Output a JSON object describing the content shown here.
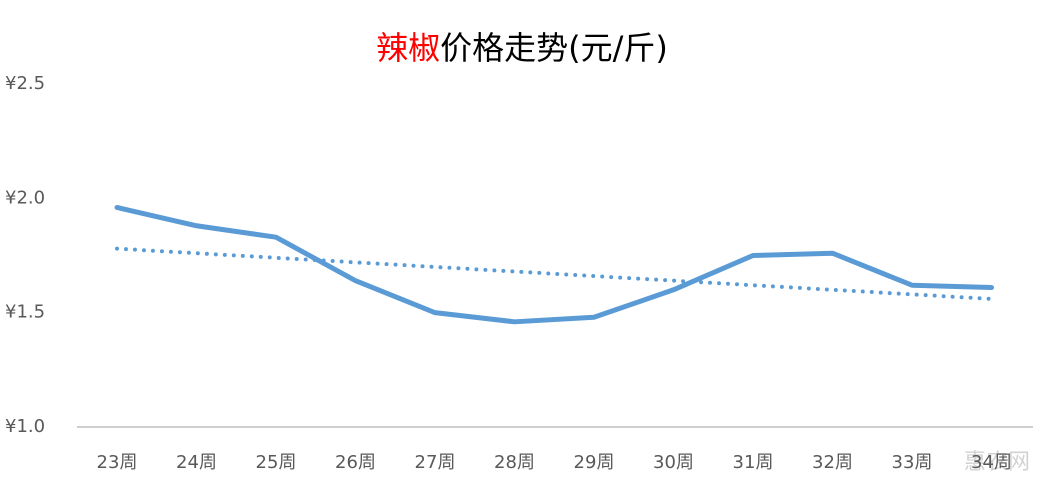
{
  "chart_data": {
    "type": "line",
    "title_highlight": "辣椒",
    "title": "价格走势(元/斤)",
    "categories": [
      "23周",
      "24周",
      "25周",
      "26周",
      "27周",
      "28周",
      "29周",
      "30周",
      "31周",
      "32周",
      "33周",
      "34周"
    ],
    "series": [
      {
        "color": "#5b9bd5",
        "style": "solid",
        "values": [
          1.96,
          1.88,
          1.83,
          1.64,
          1.5,
          1.46,
          1.48,
          1.6,
          1.75,
          1.76,
          1.62,
          1.61
        ]
      },
      {
        "color": "#5b9bd5",
        "style": "dotted",
        "values": [
          1.78,
          1.76,
          1.74,
          1.72,
          1.7,
          1.68,
          1.66,
          1.64,
          1.62,
          1.6,
          1.58,
          1.56
        ]
      }
    ],
    "ylim": [
      1.0,
      2.5
    ],
    "yticks": [
      {
        "value": 1.0,
        "label": "¥1.0"
      },
      {
        "value": 1.5,
        "label": "¥1.5"
      },
      {
        "value": 2.0,
        "label": "¥2.0"
      },
      {
        "value": 2.5,
        "label": "¥2.5"
      }
    ],
    "grid": false,
    "annotation": "惠农网"
  }
}
